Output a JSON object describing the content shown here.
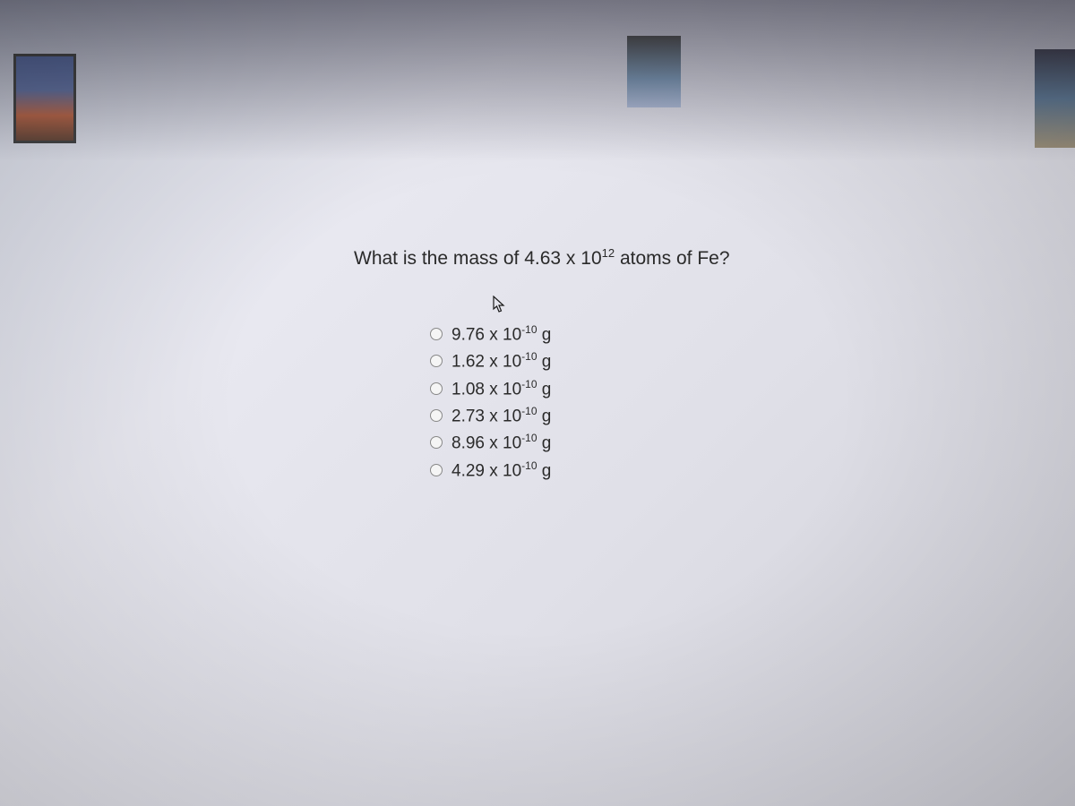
{
  "question": {
    "prefix": "What is the mass of 4.63 x 10",
    "exponent": "12",
    "suffix": " atoms of Fe?"
  },
  "options": [
    {
      "coefficient": "9.76",
      "base": "10",
      "exponent": "-10",
      "unit": "g"
    },
    {
      "coefficient": "1.62",
      "base": "10",
      "exponent": "-10",
      "unit": "g"
    },
    {
      "coefficient": "1.08",
      "base": "10",
      "exponent": "-10",
      "unit": "g"
    },
    {
      "coefficient": "2.73",
      "base": "10",
      "exponent": "-10",
      "unit": "g"
    },
    {
      "coefficient": "8.96",
      "base": "10",
      "exponent": "-10",
      "unit": "g"
    },
    {
      "coefficient": "4.29",
      "base": "10",
      "exponent": "-10",
      "unit": "g"
    }
  ],
  "styling": {
    "question_fontsize": 21,
    "option_fontsize": 19,
    "text_color": "#2a2a2a",
    "radio_border_color": "#888888",
    "background_gradient": [
      "#d8dce8",
      "#e8e8f0",
      "#e0e0e8",
      "#d0d0d8"
    ]
  }
}
